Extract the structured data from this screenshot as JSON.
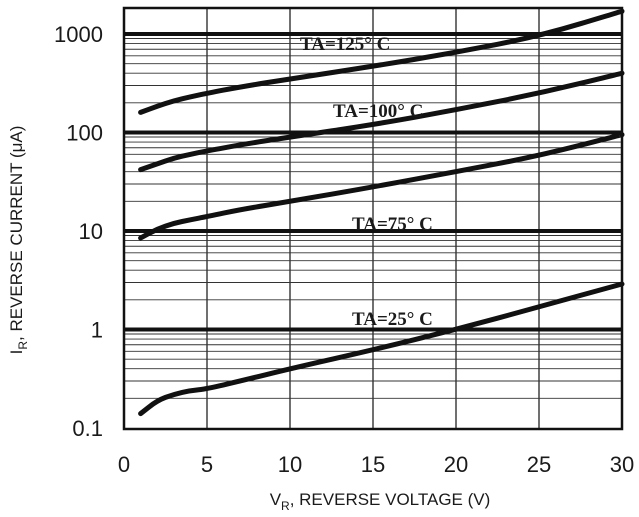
{
  "chart_data": {
    "type": "line",
    "xlabel_main": "V",
    "xlabel_sub": "R",
    "xlabel_rest": ", REVERSE VOLTAGE (V)",
    "ylabel_main": "I",
    "ylabel_sub": "R",
    "ylabel_rest": ", REVERSE CURRENT (μA)",
    "xlim": [
      0,
      30
    ],
    "ylim": [
      0.1,
      2000
    ],
    "y_scale": "log",
    "grid": true,
    "x_ticks": [
      0,
      5,
      10,
      15,
      20,
      25,
      30
    ],
    "x_tick_labels": [
      "0",
      "5",
      "10",
      "15",
      "20",
      "25",
      "30"
    ],
    "y_ticks": [
      0.1,
      1,
      10,
      100,
      1000
    ],
    "y_tick_labels": [
      "0.1",
      "1",
      "10",
      "100",
      "1000"
    ],
    "series": [
      {
        "name": "TA=125° C",
        "x": [
          1,
          2,
          3,
          4,
          5,
          7,
          10,
          15,
          20,
          25,
          30
        ],
        "y": [
          160,
          185,
          210,
          230,
          250,
          290,
          350,
          470,
          650,
          950,
          1700
        ]
      },
      {
        "name": "TA=100° C",
        "x": [
          1,
          2,
          3,
          4,
          5,
          7,
          10,
          15,
          20,
          25,
          30
        ],
        "y": [
          42,
          48,
          55,
          60,
          65,
          75,
          90,
          120,
          170,
          250,
          400
        ]
      },
      {
        "name": "TA=75° C",
        "x": [
          1,
          2,
          3,
          4,
          5,
          7,
          10,
          15,
          20,
          25,
          30
        ],
        "y": [
          8.5,
          10.5,
          12,
          13,
          14,
          16.5,
          20,
          28,
          40,
          58,
          95
        ]
      },
      {
        "name": "TA=25° C",
        "x": [
          1,
          2,
          3,
          4,
          5,
          7,
          10,
          15,
          20,
          25,
          30
        ],
        "y": [
          0.14,
          0.19,
          0.22,
          0.24,
          0.25,
          0.3,
          0.4,
          0.62,
          1.0,
          1.7,
          2.9
        ]
      }
    ],
    "colors": {
      "line": "#111111",
      "grid_major": "#111111",
      "grid_minor": "#333333",
      "background": "#ffffff"
    }
  }
}
